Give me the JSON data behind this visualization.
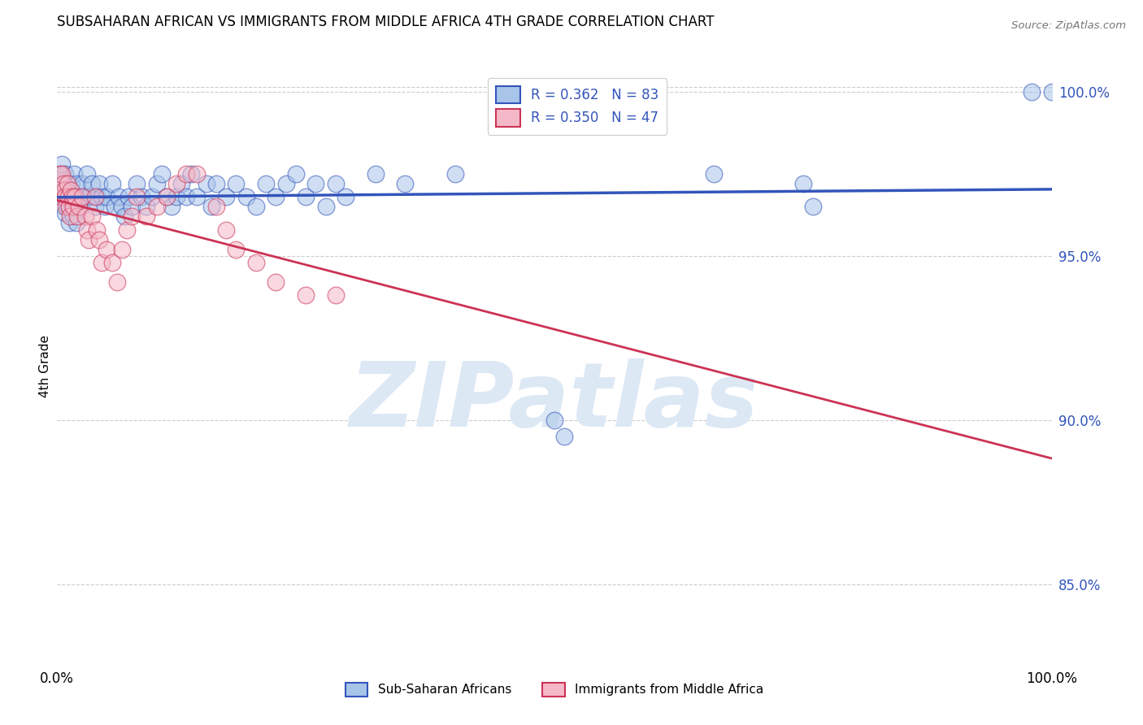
{
  "title": "SUBSAHARAN AFRICAN VS IMMIGRANTS FROM MIDDLE AFRICA 4TH GRADE CORRELATION CHART",
  "source": "Source: ZipAtlas.com",
  "ylabel": "4th Grade",
  "xlim": [
    0.0,
    1.0
  ],
  "ylim": [
    0.825,
    1.008
  ],
  "yticks": [
    0.85,
    0.9,
    0.95,
    1.0
  ],
  "ytick_labels": [
    "85.0%",
    "90.0%",
    "95.0%",
    "100.0%"
  ],
  "xticks": [
    0.0,
    0.2,
    0.4,
    0.6,
    0.8,
    1.0
  ],
  "xtick_labels": [
    "0.0%",
    "",
    "",
    "",
    "",
    "100.0%"
  ],
  "legend_label1": "Sub-Saharan Africans",
  "legend_label2": "Immigrants from Middle Africa",
  "blue_color": "#a8c4e8",
  "pink_color": "#f5b8c8",
  "trendline_blue": "#3355bb",
  "trendline_pink": "#cc3355",
  "watermark_color": "#dde8f5",
  "blue_x": [
    0.002,
    0.003,
    0.004,
    0.005,
    0.005,
    0.006,
    0.006,
    0.007,
    0.007,
    0.008,
    0.008,
    0.009,
    0.01,
    0.01,
    0.011,
    0.012,
    0.013,
    0.014,
    0.015,
    0.016,
    0.017,
    0.018,
    0.019,
    0.02,
    0.022,
    0.024,
    0.025,
    0.027,
    0.03,
    0.032,
    0.035,
    0.038,
    0.04,
    0.042,
    0.045,
    0.048,
    0.05,
    0.055,
    0.058,
    0.062,
    0.065,
    0.068,
    0.072,
    0.075,
    0.08,
    0.085,
    0.09,
    0.095,
    0.1,
    0.105,
    0.11,
    0.115,
    0.12,
    0.125,
    0.13,
    0.135,
    0.14,
    0.15,
    0.155,
    0.16,
    0.17,
    0.18,
    0.19,
    0.2,
    0.21,
    0.22,
    0.23,
    0.24,
    0.25,
    0.26,
    0.27,
    0.28,
    0.29,
    0.32,
    0.35,
    0.4,
    0.5,
    0.51,
    0.66,
    0.75,
    0.76,
    0.98,
    1.0
  ],
  "blue_y": [
    0.972,
    0.975,
    0.968,
    0.973,
    0.978,
    0.97,
    0.965,
    0.972,
    0.968,
    0.975,
    0.963,
    0.97,
    0.968,
    0.972,
    0.965,
    0.96,
    0.968,
    0.972,
    0.965,
    0.962,
    0.975,
    0.968,
    0.96,
    0.972,
    0.968,
    0.965,
    0.972,
    0.968,
    0.975,
    0.968,
    0.972,
    0.965,
    0.968,
    0.972,
    0.968,
    0.965,
    0.968,
    0.972,
    0.965,
    0.968,
    0.965,
    0.962,
    0.968,
    0.965,
    0.972,
    0.968,
    0.965,
    0.968,
    0.972,
    0.975,
    0.968,
    0.965,
    0.968,
    0.972,
    0.968,
    0.975,
    0.968,
    0.972,
    0.965,
    0.972,
    0.968,
    0.972,
    0.968,
    0.965,
    0.972,
    0.968,
    0.972,
    0.975,
    0.968,
    0.972,
    0.965,
    0.972,
    0.968,
    0.975,
    0.972,
    0.975,
    0.9,
    0.895,
    0.975,
    0.972,
    0.965,
    1.0,
    1.0
  ],
  "pink_x": [
    0.002,
    0.003,
    0.004,
    0.005,
    0.006,
    0.007,
    0.008,
    0.009,
    0.01,
    0.011,
    0.012,
    0.013,
    0.014,
    0.015,
    0.016,
    0.018,
    0.02,
    0.022,
    0.025,
    0.028,
    0.03,
    0.032,
    0.035,
    0.038,
    0.04,
    0.042,
    0.045,
    0.05,
    0.055,
    0.06,
    0.065,
    0.07,
    0.075,
    0.08,
    0.09,
    0.1,
    0.11,
    0.12,
    0.13,
    0.14,
    0.16,
    0.17,
    0.18,
    0.2,
    0.22,
    0.25,
    0.28
  ],
  "pink_y": [
    0.97,
    0.975,
    0.968,
    0.975,
    0.972,
    0.97,
    0.968,
    0.965,
    0.972,
    0.968,
    0.965,
    0.962,
    0.97,
    0.968,
    0.965,
    0.968,
    0.962,
    0.965,
    0.968,
    0.962,
    0.958,
    0.955,
    0.962,
    0.968,
    0.958,
    0.955,
    0.948,
    0.952,
    0.948,
    0.942,
    0.952,
    0.958,
    0.962,
    0.968,
    0.962,
    0.965,
    0.968,
    0.972,
    0.975,
    0.975,
    0.965,
    0.958,
    0.952,
    0.948,
    0.942,
    0.938,
    0.938
  ]
}
